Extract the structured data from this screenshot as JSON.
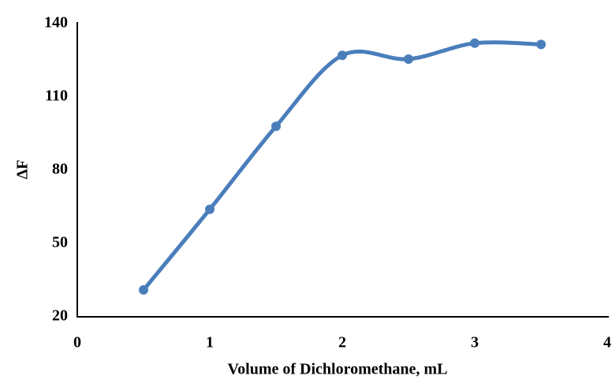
{
  "chart_data": {
    "type": "line",
    "x": [
      0.5,
      1,
      1.5,
      2,
      2.5,
      3,
      3.5
    ],
    "values": [
      31,
      64,
      98,
      127,
      125.5,
      132,
      131.5
    ],
    "color": "#4a7ebb",
    "smooth": true,
    "xlabel": "Volume of Dichloromethane, mL",
    "ylabel": "ΔF",
    "xlim": [
      0,
      4
    ],
    "xticks": [
      0,
      1,
      2,
      3,
      4
    ],
    "ylim": [
      20,
      140
    ],
    "yticks": [
      20,
      50,
      80,
      110,
      140
    ],
    "grid": false
  }
}
